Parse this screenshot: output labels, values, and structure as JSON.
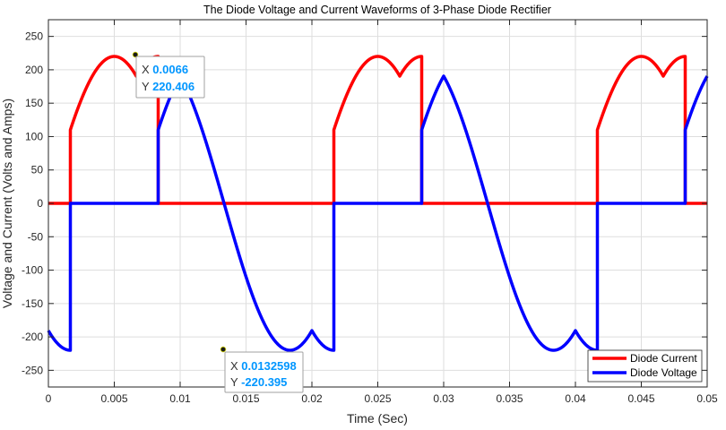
{
  "chart_data": {
    "type": "line",
    "title": "The Diode Voltage and Current Waveforms of 3-Phase Diode Rectifier",
    "xlabel": "Time (Sec)",
    "ylabel": "Voltage and Current (Volts and Amps)",
    "xlim": [
      0,
      0.05
    ],
    "ylim": [
      -275,
      275
    ],
    "x_ticks": [
      "0",
      "0.005",
      "0.01",
      "0.015",
      "0.02",
      "0.025",
      "0.03",
      "0.035",
      "0.04",
      "0.045",
      "0.05"
    ],
    "y_ticks": [
      "-250",
      "-200",
      "-150",
      "-100",
      "-50",
      "0",
      "50",
      "100",
      "150",
      "200",
      "250"
    ],
    "grid": true,
    "legend_position": "bottom-right",
    "series": [
      {
        "name": "Diode Current",
        "color": "#ff0000",
        "description": "Conducts 220*max(sin(wt), sin(wt - 60deg)) for 0.0016667 < t mod 0.02 < 0.0083333, zero otherwise (f = 50 Hz)"
      },
      {
        "name": "Diode Voltage",
        "color": "#0000ff",
        "description": "Zero while conducting, otherwise equals the negative line-to-line envelope, minimum -220"
      }
    ],
    "datatips": [
      {
        "x_label": "X",
        "x_value": "0.0066",
        "y_label": "Y",
        "y_value": "220.406",
        "series": "Diode Current",
        "x": 0.0066,
        "y": 220.406
      },
      {
        "x_label": "X",
        "x_value": "0.0132598",
        "y_label": "Y",
        "y_value": "-220.395",
        "series": "Diode Voltage",
        "x": 0.0132598,
        "y": -220.395
      }
    ]
  }
}
